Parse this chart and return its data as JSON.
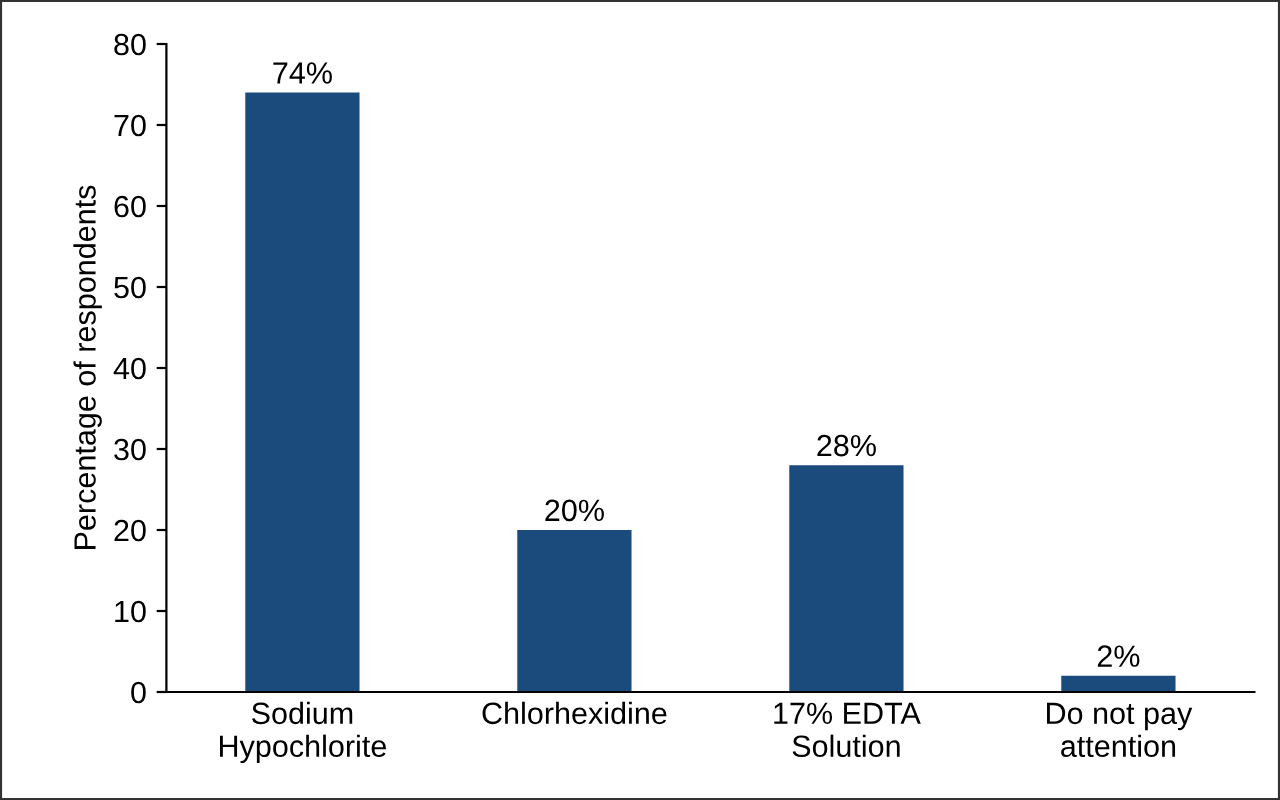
{
  "chart_data": {
    "type": "bar",
    "ylabel": "Percentage of respondents",
    "categories": [
      "Sodium\nHypochlorite",
      "Chlorhexidine",
      "17% EDTA\nSolution",
      "Do not pay\nattention"
    ],
    "values": [
      74,
      20,
      28,
      2
    ],
    "value_labels": [
      "74%",
      "20%",
      "28%",
      "2%"
    ],
    "color": "#1b4a7c",
    "ylim": [
      0,
      80
    ],
    "yticks": [
      0,
      10,
      20,
      30,
      40,
      50,
      60,
      70,
      80
    ],
    "grid": false
  }
}
